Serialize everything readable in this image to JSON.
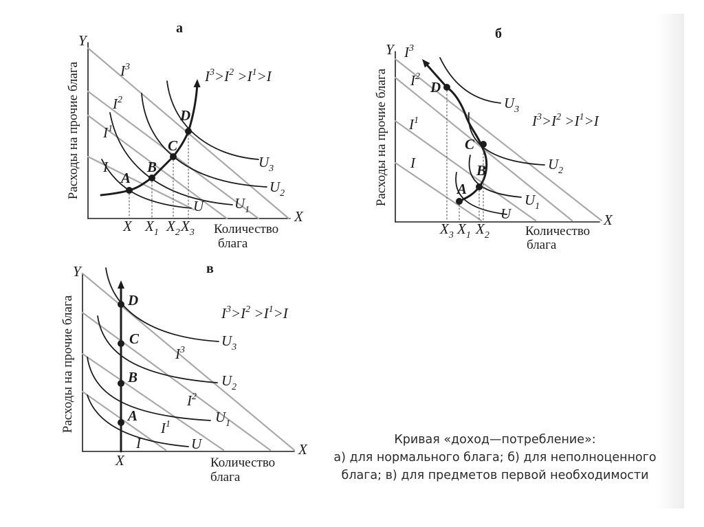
{
  "panels": [
    {
      "id": "a",
      "panel_label": "а",
      "y_axis_symbol": "Y",
      "x_axis_symbol": "X",
      "y_axis_title": "Расходы на прочие блага",
      "x_axis_title_line1": "Количество",
      "x_axis_title_line2": "блага",
      "income_order": {
        "base": "I",
        "parts": [
          [
            "I",
            "3"
          ],
          [
            ">",
            ""
          ],
          [
            "I",
            "2"
          ],
          [
            " >",
            ""
          ],
          [
            "I",
            "1"
          ],
          [
            ">I",
            ""
          ]
        ]
      },
      "budget_lines": [
        {
          "name": "I",
          "sup": ""
        },
        {
          "name": "I",
          "sup": "1"
        },
        {
          "name": "I",
          "sup": "2"
        },
        {
          "name": "I",
          "sup": "3"
        }
      ],
      "indifference_curves": [
        {
          "name": "U",
          "sub": ""
        },
        {
          "name": "U",
          "sub": "1"
        },
        {
          "name": "U",
          "sub": "2"
        },
        {
          "name": "U",
          "sub": "3"
        }
      ],
      "points": [
        "A",
        "B",
        "C",
        "D"
      ],
      "x_ticks": [
        {
          "name": "X",
          "sub": ""
        },
        {
          "name": "X",
          "sub": "1"
        },
        {
          "name": "X",
          "sub": "2"
        },
        {
          "name": "X",
          "sub": "3"
        }
      ]
    },
    {
      "id": "b",
      "panel_label": "б",
      "y_axis_symbol": "Y",
      "x_axis_symbol": "X",
      "y_axis_title": "Расходы на прочие блага",
      "x_axis_title_line1": "Количество",
      "x_axis_title_line2": "блага",
      "income_order": {
        "parts": [
          [
            "I",
            "3"
          ],
          [
            ">",
            ""
          ],
          [
            "I",
            "2"
          ],
          [
            " >",
            ""
          ],
          [
            "I",
            "1"
          ],
          [
            ">I",
            ""
          ]
        ]
      },
      "budget_lines": [
        {
          "name": "I",
          "sup": ""
        },
        {
          "name": "I",
          "sup": "1"
        },
        {
          "name": "I",
          "sup": "2"
        },
        {
          "name": "I",
          "sup": "3"
        }
      ],
      "indifference_curves": [
        {
          "name": "U",
          "sub": ""
        },
        {
          "name": "U",
          "sub": "1"
        },
        {
          "name": "U",
          "sub": "2"
        },
        {
          "name": "U",
          "sub": "3"
        }
      ],
      "points": [
        "A",
        "B",
        "C",
        "D"
      ],
      "x_ticks": [
        {
          "name": "X",
          "sub": "3"
        },
        {
          "name": "X",
          "sub": "1"
        },
        {
          "name": "X",
          "sub": "2"
        }
      ]
    },
    {
      "id": "c",
      "panel_label": "в",
      "y_axis_symbol": "Y",
      "x_axis_symbol": "X",
      "y_axis_title": "Расходы на прочие блага",
      "x_axis_title_line1": "Количество",
      "x_axis_title_line2": "блага",
      "income_order": {
        "parts": [
          [
            "I",
            "3"
          ],
          [
            ">",
            ""
          ],
          [
            "I",
            "2"
          ],
          [
            " >",
            ""
          ],
          [
            "I",
            "1"
          ],
          [
            ">I",
            ""
          ]
        ]
      },
      "budget_lines": [
        {
          "name": "I",
          "sup": ""
        },
        {
          "name": "I",
          "sup": "1"
        },
        {
          "name": "I",
          "sup": "2"
        },
        {
          "name": "I",
          "sup": "3"
        }
      ],
      "indifference_curves": [
        {
          "name": "U",
          "sub": ""
        },
        {
          "name": "U",
          "sub": "1"
        },
        {
          "name": "U",
          "sub": "2"
        },
        {
          "name": "U",
          "sub": "3"
        }
      ],
      "points": [
        "A",
        "B",
        "C",
        "D"
      ],
      "x_ticks": [
        {
          "name": "X",
          "sub": ""
        }
      ]
    }
  ],
  "caption": {
    "line1": "Кривая «доход—потребление»:",
    "line2": "а) для нормального блага; б) для неполноценного",
    "line3": "блага; в) для предметов первой необходимости"
  },
  "colors": {
    "ink": "#1c1c1c",
    "budget_line": "#a9a9a9",
    "guide": "#555555",
    "caption_text": "#2a2a2a"
  }
}
